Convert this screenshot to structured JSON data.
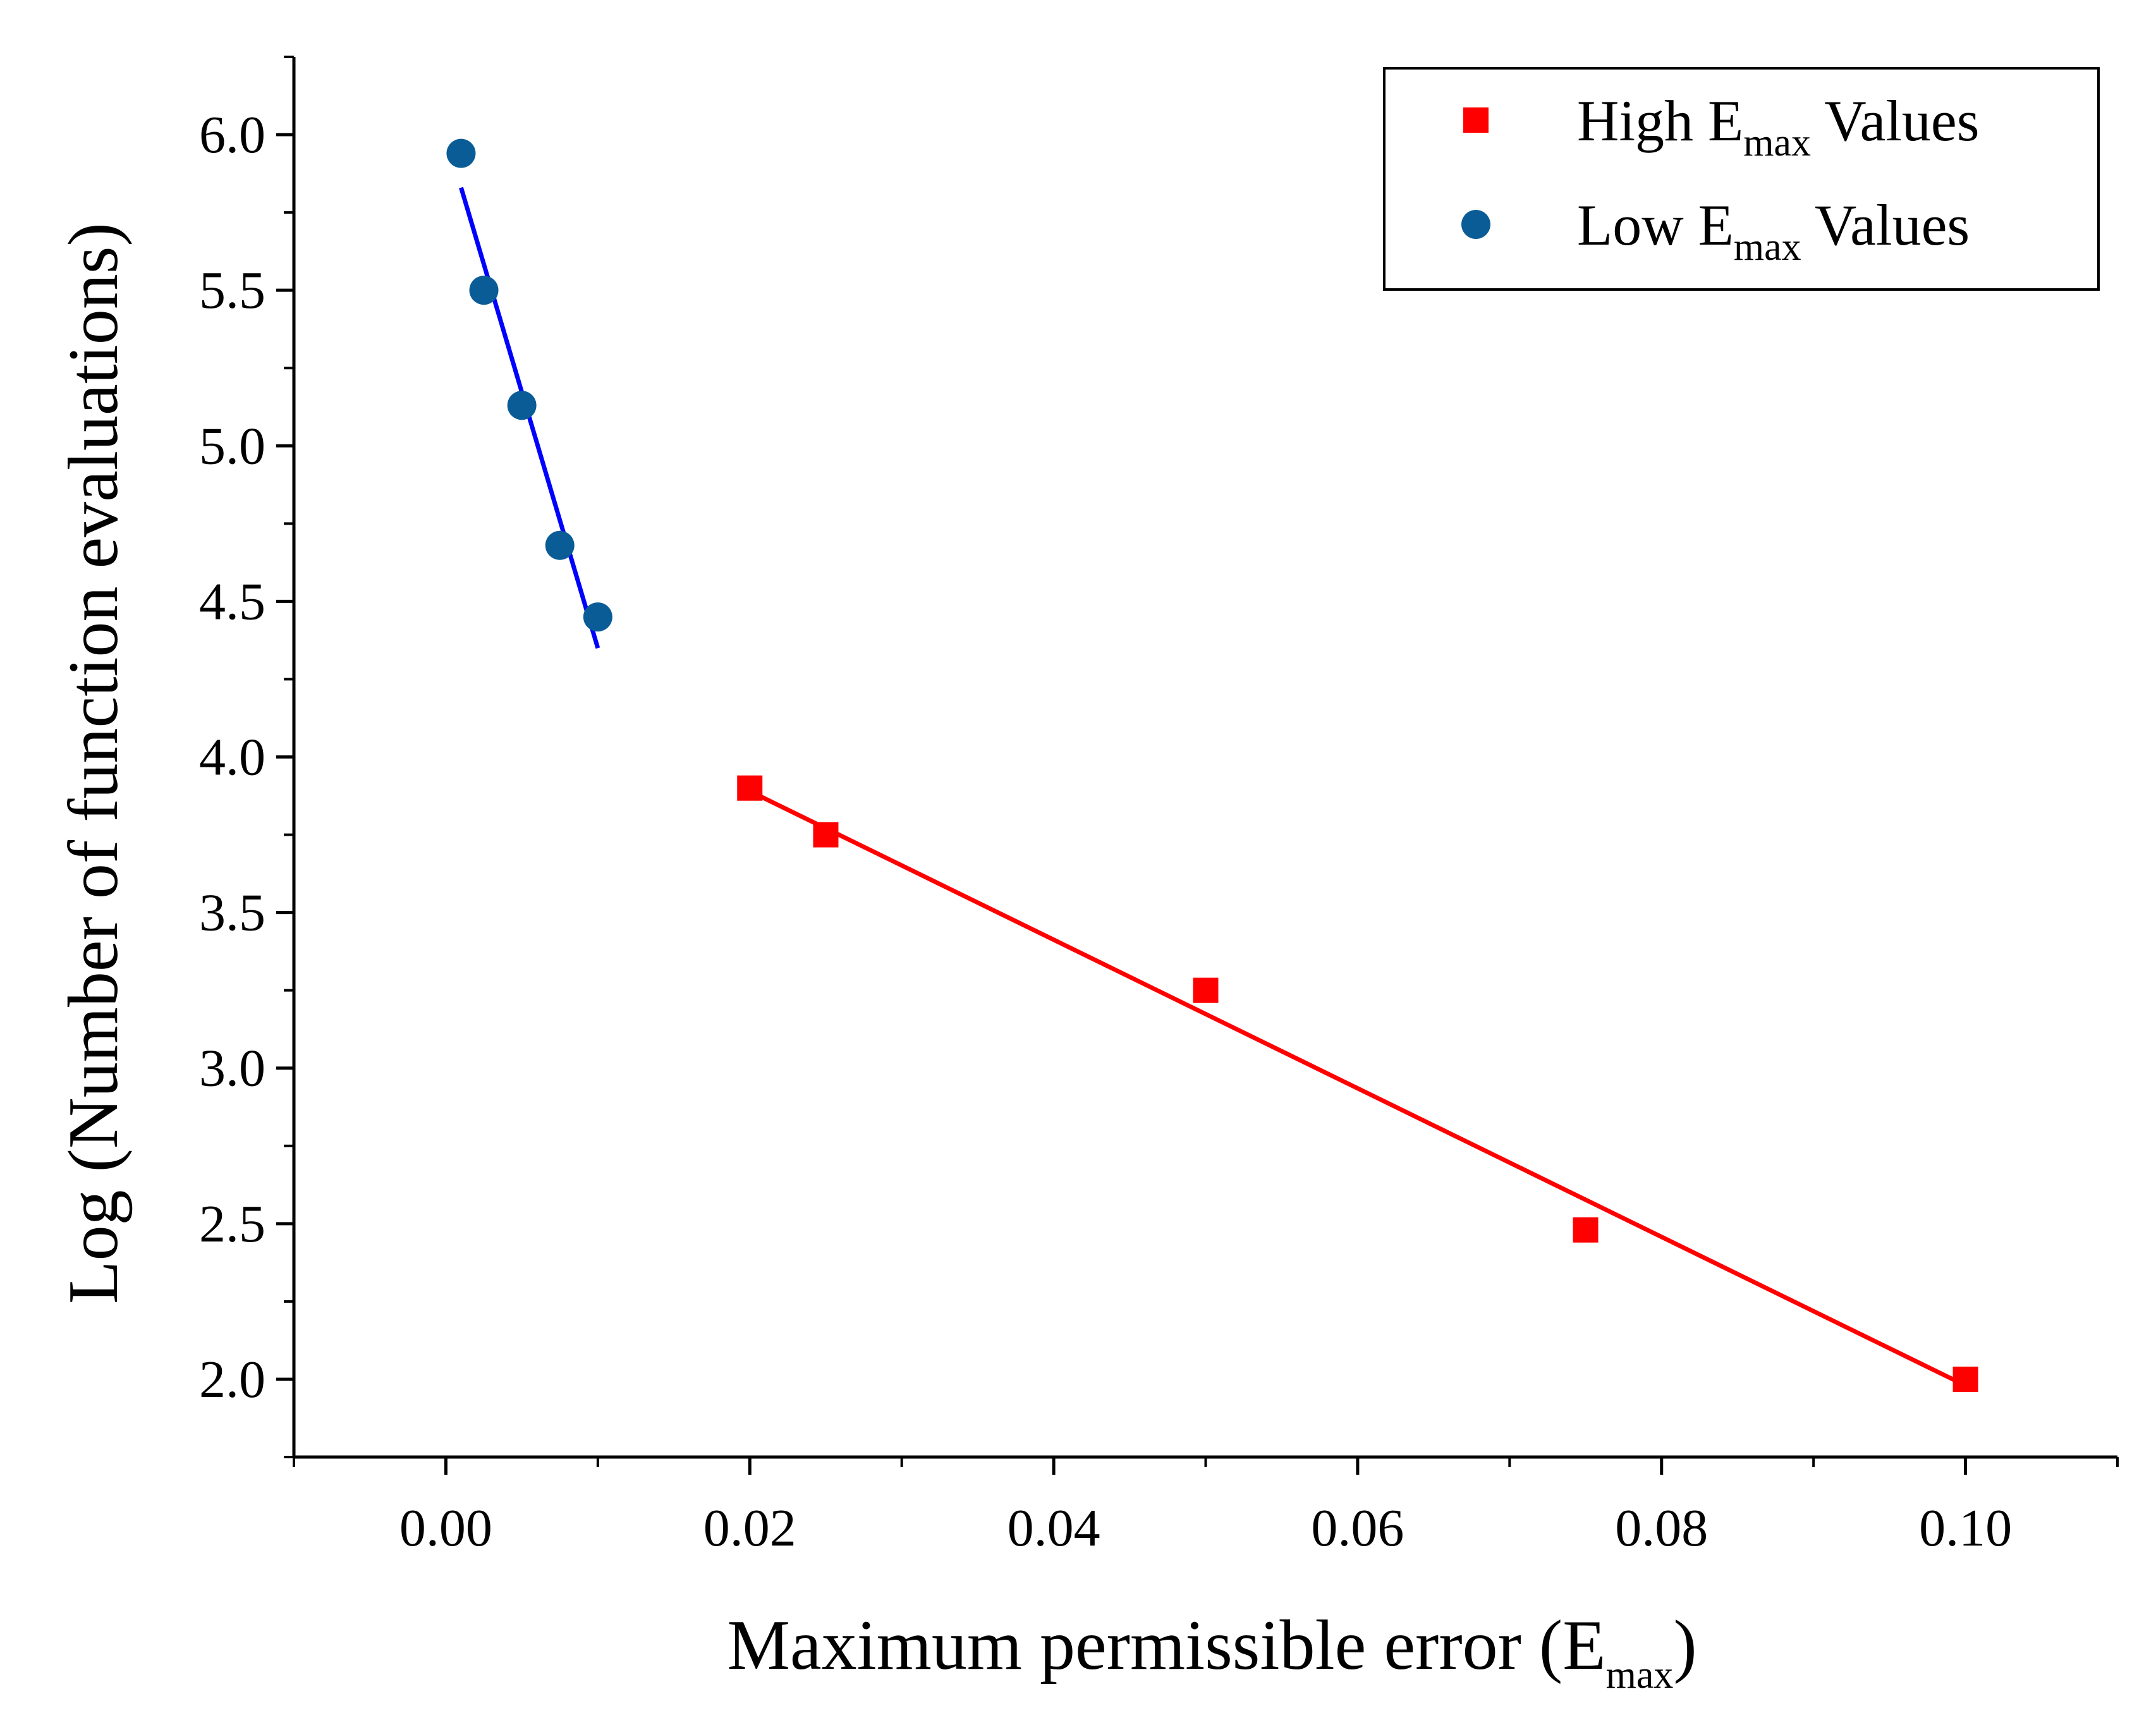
{
  "chart_data": {
    "type": "scatter",
    "title": "",
    "xlabel": {
      "main": "Maximum permissible error (E",
      "sub": "max",
      "tail": ")"
    },
    "ylabel": "Log (Number of function evaluations)",
    "xlim": [
      -0.01,
      0.11
    ],
    "ylim": [
      1.75,
      6.25
    ],
    "xticks": [
      0.0,
      0.02,
      0.04,
      0.06,
      0.08,
      0.1
    ],
    "xtick_labels": [
      "0.00",
      "0.02",
      "0.04",
      "0.06",
      "0.08",
      "0.10"
    ],
    "yticks": [
      2.0,
      2.5,
      3.0,
      3.5,
      4.0,
      4.5,
      5.0,
      5.5,
      6.0
    ],
    "ytick_labels": [
      "2.0",
      "2.5",
      "3.0",
      "3.5",
      "4.0",
      "4.5",
      "5.0",
      "5.5",
      "6.0"
    ],
    "grid": false,
    "legend_position": "top-right",
    "series": [
      {
        "name": "High E_max Values",
        "legend": {
          "main": "High E",
          "sub": "max",
          "tail": " Values"
        },
        "marker": "square",
        "color": "#ff0000",
        "x": [
          0.02,
          0.025,
          0.05,
          0.075,
          0.1
        ],
        "y": [
          3.9,
          3.75,
          3.25,
          2.48,
          2.0
        ],
        "fit": {
          "x": [
            0.02,
            0.1
          ],
          "y": [
            3.89,
            1.98
          ],
          "color": "#ff0000"
        }
      },
      {
        "name": "Low E_max Values",
        "legend": {
          "main": "Low E",
          "sub": "max",
          "tail": " Values"
        },
        "marker": "circle",
        "color": "#0a5c96",
        "x": [
          0.001,
          0.0025,
          0.005,
          0.0075,
          0.01
        ],
        "y": [
          5.94,
          5.5,
          5.13,
          4.68,
          4.45
        ],
        "fit": {
          "x": [
            0.001,
            0.01
          ],
          "y": [
            5.83,
            4.35
          ],
          "color": "#0000ff"
        }
      }
    ]
  }
}
